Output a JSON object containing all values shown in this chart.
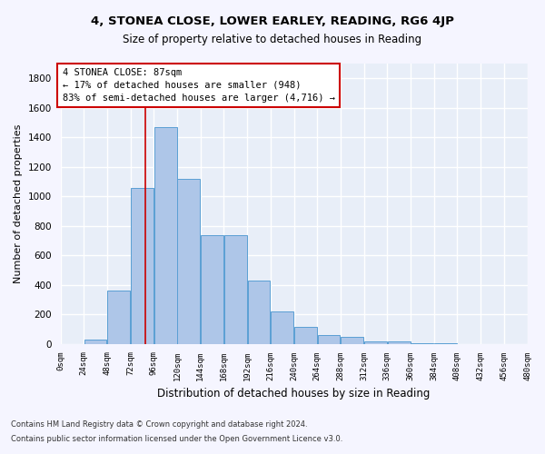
{
  "title": "4, STONEA CLOSE, LOWER EARLEY, READING, RG6 4JP",
  "subtitle": "Size of property relative to detached houses in Reading",
  "xlabel": "Distribution of detached houses by size in Reading",
  "ylabel": "Number of detached properties",
  "bar_values": [
    0,
    30,
    360,
    1060,
    1470,
    1120,
    740,
    740,
    430,
    220,
    115,
    60,
    50,
    20,
    15,
    5,
    2,
    1,
    0,
    0
  ],
  "bin_edges": [
    0,
    24,
    48,
    72,
    96,
    120,
    144,
    168,
    192,
    216,
    240,
    264,
    288,
    312,
    336,
    360,
    384,
    408,
    432,
    456,
    480
  ],
  "tick_labels": [
    "0sqm",
    "24sqm",
    "48sqm",
    "72sqm",
    "96sqm",
    "120sqm",
    "144sqm",
    "168sqm",
    "192sqm",
    "216sqm",
    "240sqm",
    "264sqm",
    "288sqm",
    "312sqm",
    "336sqm",
    "360sqm",
    "384sqm",
    "408sqm",
    "432sqm",
    "456sqm",
    "480sqm"
  ],
  "bar_color": "#aec6e8",
  "bar_edge_color": "#5a9fd4",
  "vline_x": 87,
  "vline_color": "#cc0000",
  "annotation_line1": "4 STONEA CLOSE: 87sqm",
  "annotation_line2": "← 17% of detached houses are smaller (948)",
  "annotation_line3": "83% of semi-detached houses are larger (4,716) →",
  "annotation_box_color": "#cc0000",
  "ylim": [
    0,
    1900
  ],
  "yticks": [
    0,
    200,
    400,
    600,
    800,
    1000,
    1200,
    1400,
    1600,
    1800
  ],
  "bg_color": "#e8eef8",
  "grid_color": "#ffffff",
  "fig_bg_color": "#f5f5ff",
  "footnote1": "Contains HM Land Registry data © Crown copyright and database right 2024.",
  "footnote2": "Contains public sector information licensed under the Open Government Licence v3.0."
}
